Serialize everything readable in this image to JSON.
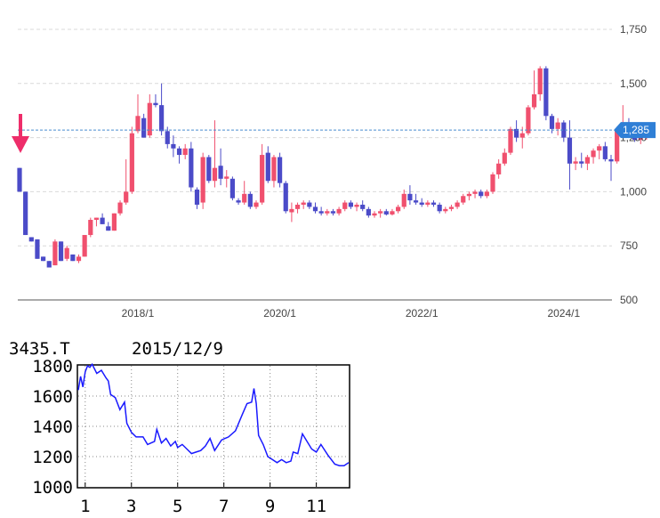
{
  "colors": {
    "up": "#f0506e",
    "down": "#4b4bc8",
    "grid": "#d9d9d9",
    "current_line": "#4a8ed0",
    "current_tag": "#2f7fd6",
    "arrow": "#ee2d6a",
    "sub_line": "#1a1aff"
  },
  "main": {
    "current_price_label": "1,285",
    "current_price": 1285,
    "y_ticks": [
      {
        "value": 500,
        "label": "500"
      },
      {
        "value": 750,
        "label": "750"
      },
      {
        "value": 1000,
        "label": "1,000"
      },
      {
        "value": 1250,
        "label": "1,250"
      },
      {
        "value": 1500,
        "label": "1,500"
      },
      {
        "value": 1750,
        "label": "1,750"
      }
    ],
    "x_ticks": [
      {
        "month": 20,
        "label": "2018/1"
      },
      {
        "month": 44,
        "label": "2020/1"
      },
      {
        "month": 68,
        "label": "2022/1"
      },
      {
        "month": 92,
        "label": "2024/1"
      }
    ]
  },
  "sub": {
    "code": "3435.T",
    "date": "2015/12/9",
    "y_ticks": [
      "1800",
      "1600",
      "1400",
      "1200",
      "1000"
    ],
    "x_ticks": [
      {
        "month": 1,
        "label": "1"
      },
      {
        "month": 3,
        "label": "3"
      },
      {
        "month": 5,
        "label": "5"
      },
      {
        "month": 7,
        "label": "7"
      },
      {
        "month": 9,
        "label": "9"
      },
      {
        "month": 11,
        "label": "11"
      }
    ]
  },
  "chart_data": [
    {
      "type": "candlestick",
      "title": "",
      "xlabel": "",
      "ylabel": "",
      "x_unit": "monthly (months from 2016/5)",
      "ylim": [
        500,
        1750
      ],
      "candles": [
        [
          1110,
          1110,
          1000,
          1000
        ],
        [
          1000,
          1000,
          800,
          800
        ],
        [
          790,
          790,
          770,
          770
        ],
        [
          780,
          780,
          690,
          690
        ],
        [
          700,
          700,
          680,
          680
        ],
        [
          680,
          680,
          650,
          650
        ],
        [
          660,
          780,
          660,
          770
        ],
        [
          770,
          770,
          680,
          680
        ],
        [
          690,
          750,
          680,
          740
        ],
        [
          710,
          710,
          680,
          680
        ],
        [
          680,
          710,
          670,
          700
        ],
        [
          700,
          800,
          700,
          800
        ],
        [
          800,
          880,
          790,
          870
        ],
        [
          870,
          880,
          840,
          880
        ],
        [
          880,
          900,
          850,
          850
        ],
        [
          840,
          860,
          820,
          820
        ],
        [
          820,
          900,
          820,
          900
        ],
        [
          900,
          960,
          890,
          950
        ],
        [
          950,
          1150,
          940,
          1000
        ],
        [
          1000,
          1300,
          990,
          1270
        ],
        [
          1280,
          1450,
          1270,
          1350
        ],
        [
          1340,
          1360,
          1250,
          1250
        ],
        [
          1260,
          1450,
          1250,
          1410
        ],
        [
          1410,
          1450,
          1390,
          1400
        ],
        [
          1400,
          1500,
          1260,
          1280
        ],
        [
          1280,
          1300,
          1200,
          1220
        ],
        [
          1220,
          1260,
          1160,
          1200
        ],
        [
          1200,
          1210,
          1130,
          1170
        ],
        [
          1170,
          1220,
          1150,
          1200
        ],
        [
          1200,
          1230,
          1000,
          1020
        ],
        [
          1010,
          1020,
          920,
          940
        ],
        [
          950,
          1180,
          920,
          1160
        ],
        [
          1160,
          1170,
          1040,
          1050
        ],
        [
          1050,
          1330,
          1020,
          1110
        ],
        [
          1120,
          1200,
          1030,
          1060
        ],
        [
          1060,
          1100,
          1020,
          1070
        ],
        [
          1060,
          1070,
          960,
          970
        ],
        [
          960,
          970,
          940,
          950
        ],
        [
          950,
          1050,
          940,
          990
        ],
        [
          990,
          1000,
          920,
          930
        ],
        [
          930,
          960,
          920,
          950
        ],
        [
          950,
          1220,
          940,
          1170
        ],
        [
          1180,
          1210,
          1040,
          1050
        ],
        [
          1050,
          1170,
          1020,
          1160
        ],
        [
          1160,
          1180,
          1020,
          1040
        ],
        [
          1040,
          1050,
          900,
          910
        ],
        [
          905,
          950,
          860,
          920
        ],
        [
          920,
          950,
          900,
          940
        ],
        [
          940,
          960,
          920,
          950
        ],
        [
          950,
          960,
          920,
          930
        ],
        [
          930,
          950,
          900,
          910
        ],
        [
          910,
          930,
          890,
          900
        ],
        [
          900,
          920,
          890,
          910
        ],
        [
          910,
          920,
          890,
          900
        ],
        [
          900,
          930,
          890,
          920
        ],
        [
          920,
          960,
          910,
          950
        ],
        [
          950,
          960,
          920,
          930
        ],
        [
          930,
          950,
          910,
          940
        ],
        [
          940,
          960,
          910,
          920
        ],
        [
          920,
          930,
          880,
          890
        ],
        [
          890,
          910,
          880,
          900
        ],
        [
          900,
          920,
          880,
          910
        ],
        [
          910,
          920,
          890,
          895
        ],
        [
          895,
          920,
          890,
          910
        ],
        [
          910,
          940,
          900,
          930
        ],
        [
          930,
          1010,
          920,
          990
        ],
        [
          990,
          1030,
          940,
          960
        ],
        [
          960,
          990,
          940,
          950
        ],
        [
          950,
          970,
          930,
          940
        ],
        [
          940,
          960,
          930,
          950
        ],
        [
          950,
          960,
          930,
          940
        ],
        [
          940,
          950,
          900,
          910
        ],
        [
          910,
          930,
          900,
          920
        ],
        [
          920,
          940,
          910,
          930
        ],
        [
          930,
          960,
          920,
          950
        ],
        [
          950,
          990,
          940,
          980
        ],
        [
          980,
          1000,
          960,
          990
        ],
        [
          990,
          1010,
          970,
          1000
        ],
        [
          1000,
          1010,
          970,
          980
        ],
        [
          980,
          1010,
          970,
          1000
        ],
        [
          1000,
          1090,
          990,
          1080
        ],
        [
          1080,
          1150,
          1060,
          1130
        ],
        [
          1130,
          1200,
          1120,
          1180
        ],
        [
          1180,
          1300,
          1170,
          1290
        ],
        [
          1290,
          1330,
          1230,
          1250
        ],
        [
          1250,
          1300,
          1200,
          1270
        ],
        [
          1270,
          1400,
          1260,
          1390
        ],
        [
          1390,
          1560,
          1380,
          1450
        ],
        [
          1450,
          1580,
          1420,
          1570
        ],
        [
          1570,
          1580,
          1330,
          1350
        ],
        [
          1350,
          1360,
          1270,
          1290
        ],
        [
          1290,
          1340,
          1260,
          1320
        ],
        [
          1320,
          1330,
          1230,
          1250
        ],
        [
          1250,
          1330,
          1010,
          1130
        ],
        [
          1130,
          1160,
          1100,
          1140
        ],
        [
          1140,
          1180,
          1110,
          1130
        ],
        [
          1130,
          1170,
          1100,
          1160
        ],
        [
          1160,
          1200,
          1130,
          1190
        ],
        [
          1190,
          1220,
          1150,
          1210
        ],
        [
          1210,
          1230,
          1140,
          1150
        ],
        [
          1150,
          1170,
          1050,
          1140
        ],
        [
          1140,
          1300,
          1130,
          1290
        ],
        [
          1290,
          1400,
          1280,
          1300
        ],
        [
          1300,
          1340,
          1280,
          1290
        ],
        [
          1290,
          1300,
          1230,
          1240
        ],
        [
          1240,
          1260,
          1220,
          1250
        ],
        [
          1250,
          1300,
          1240,
          1285
        ]
      ]
    },
    {
      "type": "line",
      "title": "",
      "xlabel": "",
      "ylabel": "",
      "year": "2015",
      "xlim": [
        0.7,
        12.4
      ],
      "ylim": [
        1000,
        1800
      ],
      "x": [
        0.7,
        0.8,
        0.9,
        1.0,
        1.1,
        1.2,
        1.3,
        1.5,
        1.7,
        1.9,
        2.0,
        2.1,
        2.3,
        2.5,
        2.7,
        2.8,
        3.0,
        3.2,
        3.5,
        3.7,
        4.0,
        4.1,
        4.3,
        4.5,
        4.7,
        4.9,
        5.0,
        5.2,
        5.4,
        5.6,
        5.8,
        6.0,
        6.2,
        6.4,
        6.6,
        6.9,
        7.2,
        7.5,
        7.8,
        8.0,
        8.2,
        8.3,
        8.4,
        8.5,
        8.7,
        8.9,
        9.1,
        9.3,
        9.5,
        9.7,
        9.9,
        10.0,
        10.2,
        10.4,
        10.6,
        10.8,
        11.0,
        11.2,
        11.5,
        11.8,
        12.0,
        12.2,
        12.4
      ],
      "values": [
        1640,
        1730,
        1660,
        1760,
        1800,
        1790,
        1810,
        1750,
        1770,
        1720,
        1700,
        1610,
        1590,
        1510,
        1560,
        1420,
        1360,
        1330,
        1330,
        1280,
        1300,
        1380,
        1290,
        1320,
        1270,
        1300,
        1260,
        1280,
        1250,
        1220,
        1230,
        1240,
        1270,
        1320,
        1240,
        1310,
        1330,
        1370,
        1480,
        1550,
        1560,
        1650,
        1550,
        1340,
        1280,
        1200,
        1180,
        1160,
        1180,
        1160,
        1170,
        1230,
        1220,
        1350,
        1300,
        1250,
        1230,
        1280,
        1210,
        1150,
        1140,
        1140,
        1160
      ]
    }
  ]
}
